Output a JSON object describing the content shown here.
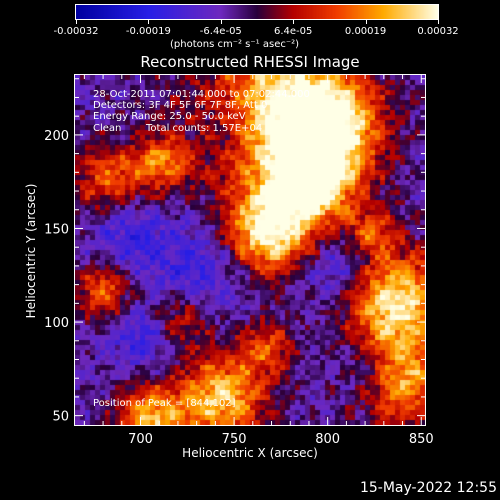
{
  "chart_data": {
    "type": "heatmap",
    "title": "Reconstructed RHESSI Image",
    "xlabel": "Heliocentric X (arcsec)",
    "ylabel": "Heliocentric Y (arcsec)",
    "xlim": [
      665,
      852
    ],
    "ylim": [
      45,
      232
    ],
    "x_ticks": [
      "700",
      "750",
      "800",
      "850"
    ],
    "y_ticks": [
      "50",
      "100",
      "150",
      "200"
    ],
    "x_tick_values": [
      700,
      750,
      800,
      850
    ],
    "y_tick_values": [
      50,
      100,
      150,
      200
    ],
    "colorbar": {
      "unit_label": "(photons cm⁻² s⁻¹ asec⁻²)",
      "ticks": [
        "-0.00032",
        "-0.00019",
        "-6.4e-05",
        "6.4e-05",
        "0.00019",
        "0.00032"
      ],
      "range": [
        -0.00032,
        0.00032
      ]
    },
    "annotations": {
      "time_range": "28-Oct-2011 07:01:44.000 to 07:02:44.000",
      "detectors": "Detectors: 3F 4F 5F 6F 7F 8F, Att 0",
      "energy": "Energy Range: 25.0 - 50.0 keV",
      "clean": "Clean",
      "counts": "Total counts: 1.57E+04",
      "peak": "Position of Peak = [844,102]"
    },
    "peak": [
      844,
      102
    ]
  },
  "timestamp": "15-May-2022 12:55"
}
